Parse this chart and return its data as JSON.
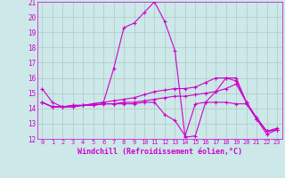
{
  "title": "",
  "xlabel": "Windchill (Refroidissement éolien,°C)",
  "xlim": [
    -0.5,
    23.5
  ],
  "ylim": [
    12,
    21
  ],
  "yticks": [
    12,
    13,
    14,
    15,
    16,
    17,
    18,
    19,
    20,
    21
  ],
  "xticks": [
    0,
    1,
    2,
    3,
    4,
    5,
    6,
    7,
    8,
    9,
    10,
    11,
    12,
    13,
    14,
    15,
    16,
    17,
    18,
    19,
    20,
    21,
    22,
    23
  ],
  "bg_color": "#cce8e8",
  "grid_color": "#b0c8c8",
  "line_color": "#cc00cc",
  "line1_x": [
    0,
    1,
    2,
    3,
    4,
    5,
    6,
    7,
    8,
    9,
    10,
    11,
    12,
    13,
    14,
    15,
    16,
    17,
    18,
    19,
    20,
    21,
    22,
    23
  ],
  "line1_y": [
    15.3,
    14.4,
    14.1,
    14.2,
    14.2,
    14.3,
    14.4,
    16.6,
    19.3,
    19.6,
    20.3,
    21.0,
    19.7,
    17.8,
    12.1,
    12.2,
    14.4,
    15.1,
    16.0,
    16.0,
    14.4,
    13.3,
    12.3,
    12.6
  ],
  "line2_x": [
    0,
    1,
    2,
    3,
    4,
    5,
    6,
    7,
    8,
    9,
    10,
    11,
    12,
    13,
    14,
    15,
    16,
    17,
    18,
    19,
    20,
    21,
    22,
    23
  ],
  "line2_y": [
    14.4,
    14.1,
    14.1,
    14.2,
    14.2,
    14.3,
    14.4,
    14.5,
    14.6,
    14.7,
    14.9,
    15.1,
    15.2,
    15.3,
    15.3,
    15.4,
    15.7,
    16.0,
    16.0,
    15.8,
    14.4,
    13.4,
    12.5,
    12.7
  ],
  "line3_x": [
    0,
    1,
    2,
    3,
    4,
    5,
    6,
    7,
    8,
    9,
    10,
    11,
    12,
    13,
    14,
    15,
    16,
    17,
    18,
    19,
    20,
    21,
    22,
    23
  ],
  "line3_y": [
    14.4,
    14.1,
    14.1,
    14.1,
    14.2,
    14.2,
    14.3,
    14.3,
    14.3,
    14.3,
    14.4,
    14.4,
    13.6,
    13.2,
    12.2,
    14.3,
    14.4,
    14.4,
    14.4,
    14.3,
    14.3,
    13.3,
    12.5,
    12.6
  ],
  "line4_x": [
    0,
    1,
    2,
    3,
    4,
    5,
    6,
    7,
    8,
    9,
    10,
    11,
    12,
    13,
    14,
    15,
    16,
    17,
    18,
    19,
    20,
    21,
    22,
    23
  ],
  "line4_y": [
    14.4,
    14.1,
    14.1,
    14.1,
    14.2,
    14.2,
    14.3,
    14.3,
    14.4,
    14.4,
    14.5,
    14.6,
    14.7,
    14.8,
    14.8,
    14.9,
    15.0,
    15.1,
    15.3,
    15.6,
    14.4,
    13.3,
    12.5,
    12.6
  ]
}
